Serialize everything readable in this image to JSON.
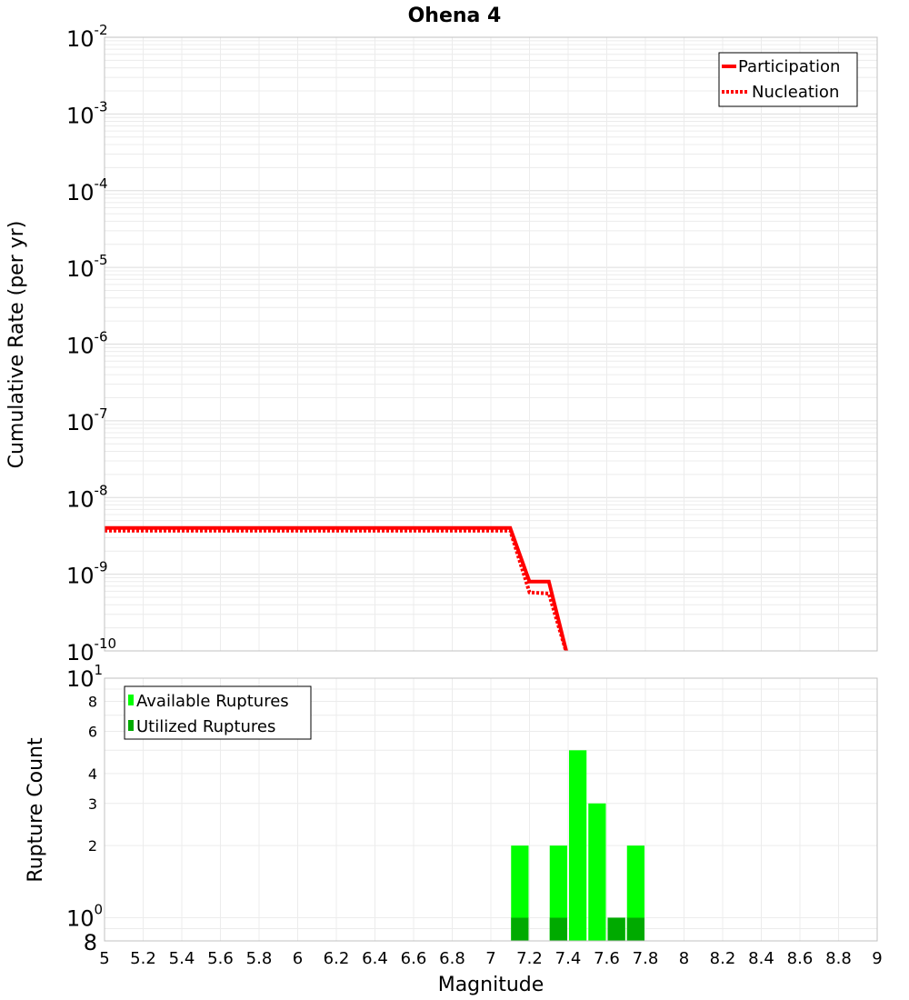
{
  "chart_data": [
    {
      "type": "line",
      "title": "Ohena 4",
      "xlabel": "Magnitude",
      "ylabel": "Cumulative Rate (per yr)",
      "yscale": "log",
      "xlim": [
        5,
        9
      ],
      "ylim": [
        1e-10,
        0.01
      ],
      "xticks": [
        "5",
        "5.2",
        "5.4",
        "5.6",
        "5.8",
        "6",
        "6.2",
        "6.4",
        "6.6",
        "6.8",
        "7",
        "7.2",
        "7.4",
        "7.6",
        "7.8",
        "8",
        "8.2",
        "8.4",
        "8.6",
        "8.8",
        "9"
      ],
      "yticks": [
        {
          "base": "10",
          "exp": "-2",
          "value": 0.01
        },
        {
          "base": "10",
          "exp": "-3",
          "value": 0.001
        },
        {
          "base": "10",
          "exp": "-4",
          "value": 0.0001
        },
        {
          "base": "10",
          "exp": "-5",
          "value": 1e-05
        },
        {
          "base": "10",
          "exp": "-6",
          "value": 1e-06
        },
        {
          "base": "10",
          "exp": "-7",
          "value": 1e-07
        },
        {
          "base": "10",
          "exp": "-8",
          "value": 1e-08
        },
        {
          "base": "10",
          "exp": "-9",
          "value": 1e-09
        },
        {
          "base": "10",
          "exp": "-10",
          "value": 1e-10
        }
      ],
      "legend": "top-right",
      "series": [
        {
          "name": "Participation",
          "color": "#ff0000",
          "style": "solid",
          "x": [
            5.0,
            7.1,
            7.2,
            7.3,
            7.4
          ],
          "y": [
            4e-09,
            4e-09,
            8e-10,
            8e-10,
            8e-11
          ]
        },
        {
          "name": "Nucleation",
          "color": "#ff0000",
          "style": "dotted",
          "x": [
            5.0,
            7.1,
            7.2,
            7.3,
            7.4
          ],
          "y": [
            3.7e-09,
            3.7e-09,
            5.8e-10,
            5.6e-10,
            8e-11
          ]
        }
      ]
    },
    {
      "type": "bar",
      "xlabel": "Magnitude",
      "ylabel": "Rupture Count",
      "yscale": "log",
      "xlim": [
        5,
        9
      ],
      "ylim": [
        0.8,
        10
      ],
      "xticks": [
        "5",
        "5.2",
        "5.4",
        "5.6",
        "5.8",
        "6",
        "6.2",
        "6.4",
        "6.6",
        "6.8",
        "7",
        "7.2",
        "7.4",
        "7.6",
        "7.8",
        "8",
        "8.2",
        "8.4",
        "8.6",
        "8.8",
        "9"
      ],
      "yticks": [
        {
          "label": "8",
          "value": 8
        },
        {
          "label": "6",
          "value": 6
        },
        {
          "label": "4",
          "value": 4
        },
        {
          "label": "3",
          "value": 3
        },
        {
          "label": "2",
          "value": 2
        }
      ],
      "ytick_major": [
        {
          "base": "10",
          "exp": "1",
          "value": 10
        },
        {
          "base": "10",
          "exp": "0",
          "value": 1
        }
      ],
      "ytick_bottom": {
        "label": "8",
        "value": 0.8
      },
      "legend": "top-left",
      "series": [
        {
          "name": "Available Ruptures",
          "color": "#00ff00",
          "x": [
            7.15,
            7.35,
            7.45,
            7.55,
            7.65,
            7.75
          ],
          "values": [
            2,
            2,
            5,
            3,
            1,
            2
          ]
        },
        {
          "name": "Utilized Ruptures",
          "color": "#00aa00",
          "x": [
            7.15,
            7.35,
            7.65,
            7.75
          ],
          "values": [
            1,
            1,
            1,
            1
          ]
        }
      ]
    }
  ]
}
